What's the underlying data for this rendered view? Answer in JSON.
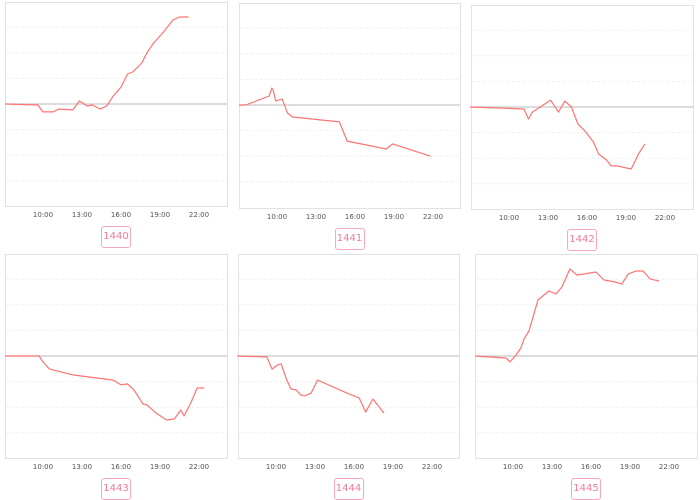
{
  "colors": {
    "line": "#ff7373",
    "baseline": "#c8c8c8",
    "grid": "#f0f0f0",
    "frame": "#e2e2e2",
    "label": "#f0789c",
    "label_border": "#f7a8c0"
  },
  "chart_data": [
    {
      "type": "line",
      "label": "1440",
      "x_unit": "time of day (hours)",
      "xticks": [
        "10:00",
        "13:00",
        "16:00",
        "19:00",
        "22:00"
      ],
      "grid": true,
      "baseline": 0,
      "x": [
        7.08,
        9.6,
        10,
        10.8,
        11.2,
        12.3,
        12.8,
        13.4,
        13.8,
        14.4,
        14.9,
        15.4,
        16,
        16.5,
        16.9,
        17.6,
        18,
        18.5,
        19.2,
        20,
        20.5,
        21.2
      ],
      "y": [
        0,
        -0.04,
        -0.31,
        -0.31,
        -0.2,
        -0.23,
        0.12,
        -0.08,
        -0.04,
        -0.2,
        -0.08,
        0.31,
        0.66,
        1.17,
        1.25,
        1.6,
        2.0,
        2.38,
        2.77,
        3.28,
        3.4,
        3.4
      ]
    },
    {
      "type": "line",
      "label": "1441",
      "x_unit": "time of day (hours)",
      "xticks": [
        "10:00",
        "13:00",
        "16:00",
        "19:00",
        "22:00"
      ],
      "grid": true,
      "baseline": 0,
      "x": [
        7.08,
        7.6,
        9.4,
        9.6,
        9.7,
        9.9,
        10.4,
        10.8,
        11.2,
        14.8,
        15.4,
        18.4,
        18.9,
        21.8
      ],
      "y": [
        0,
        0,
        0.35,
        0.66,
        0.59,
        0.16,
        0.23,
        -0.31,
        -0.47,
        -0.66,
        -1.41,
        -1.72,
        -1.52,
        -2.0
      ]
    },
    {
      "type": "line",
      "label": "1442",
      "x_unit": "time of day (hours)",
      "xticks": [
        "10:00",
        "13:00",
        "16:00",
        "19:00",
        "22:00"
      ],
      "grid": true,
      "baseline": 0,
      "x": [
        7.0,
        11.15,
        11.5,
        11.8,
        12.4,
        13.2,
        13.8,
        14.3,
        14.8,
        15.3,
        15.85,
        16.5,
        16.9,
        17.5,
        17.85,
        18.3,
        19.4,
        20,
        20.45
      ],
      "y": [
        0,
        -0.08,
        -0.47,
        -0.2,
        0,
        0.27,
        -0.2,
        0.23,
        0,
        -0.66,
        -0.94,
        -1.37,
        -1.84,
        -2.07,
        -2.3,
        -2.3,
        -2.42,
        -1.8,
        -1.45
      ]
    },
    {
      "type": "line",
      "label": "1443",
      "x_unit": "time of day (hours)",
      "xticks": [
        "10:00",
        "13:00",
        "16:00",
        "19:00",
        "22:00"
      ],
      "grid": true,
      "baseline": 0,
      "x": [
        7.08,
        9.7,
        10,
        10.5,
        12.3,
        15.4,
        16,
        16.5,
        17,
        17.7,
        18,
        18.6,
        19.5,
        20.1,
        20.6,
        20.85,
        21.4,
        21.85,
        22.4
      ],
      "y": [
        0,
        0,
        -0.23,
        -0.51,
        -0.74,
        -0.94,
        -1.13,
        -1.09,
        -1.33,
        -1.88,
        -1.91,
        -2.19,
        -2.5,
        -2.46,
        -2.11,
        -2.34,
        -1.8,
        -1.25,
        -1.25
      ]
    },
    {
      "type": "line",
      "label": "1444",
      "x_unit": "time of day (hours)",
      "xticks": [
        "10:00",
        "13:00",
        "16:00",
        "19:00",
        "22:00"
      ],
      "grid": true,
      "baseline": 0,
      "x": [
        7.0,
        9.3,
        9.7,
        10.1,
        10.4,
        10.5,
        10.8,
        11.15,
        11.55,
        11.9,
        12.2,
        12.7,
        13.2,
        15.6,
        16.4,
        16.9,
        17.45,
        18.3
      ],
      "y": [
        0,
        -0.04,
        -0.51,
        -0.35,
        -0.31,
        -0.47,
        -0.9,
        -1.29,
        -1.33,
        -1.52,
        -1.56,
        -1.45,
        -0.94,
        -1.48,
        -1.64,
        -2.19,
        -1.68,
        -2.23
      ]
    },
    {
      "type": "line",
      "label": "1445",
      "x_unit": "time of day (hours)",
      "xticks": [
        "10:00",
        "13:00",
        "16:00",
        "19:00",
        "22:00"
      ],
      "grid": true,
      "baseline": 0,
      "x": [
        7.08,
        9.46,
        9.77,
        10.23,
        10.6,
        10.85,
        11.23,
        11.54,
        11.92,
        12.77,
        13.3,
        13.77,
        14.38,
        14.92,
        16.38,
        17,
        17.85,
        18.38,
        18.85,
        19.46,
        20,
        20.54,
        21.23
      ],
      "y": [
        0,
        -0.08,
        -0.23,
        0.04,
        0.31,
        0.66,
        0.98,
        1.52,
        2.19,
        2.54,
        2.42,
        2.7,
        3.4,
        3.16,
        3.28,
        2.97,
        2.89,
        2.81,
        3.2,
        3.32,
        3.32,
        3.01,
        2.93
      ]
    }
  ]
}
